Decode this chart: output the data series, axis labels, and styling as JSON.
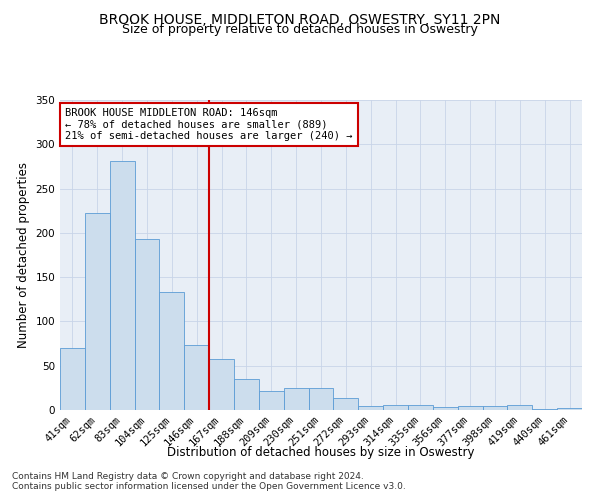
{
  "title": "BROOK HOUSE, MIDDLETON ROAD, OSWESTRY, SY11 2PN",
  "subtitle": "Size of property relative to detached houses in Oswestry",
  "xlabel": "Distribution of detached houses by size in Oswestry",
  "ylabel": "Number of detached properties",
  "categories": [
    "41sqm",
    "62sqm",
    "83sqm",
    "104sqm",
    "125sqm",
    "146sqm",
    "167sqm",
    "188sqm",
    "209sqm",
    "230sqm",
    "251sqm",
    "272sqm",
    "293sqm",
    "314sqm",
    "335sqm",
    "356sqm",
    "377sqm",
    "398sqm",
    "419sqm",
    "440sqm",
    "461sqm"
  ],
  "values": [
    70,
    222,
    281,
    193,
    133,
    73,
    58,
    35,
    21,
    25,
    25,
    14,
    5,
    6,
    6,
    3,
    4,
    5,
    6,
    1,
    2
  ],
  "bar_color": "#ccdded",
  "bar_edge_color": "#5b9bd5",
  "vline_index": 5,
  "vline_color": "#cc0000",
  "annotation_text": "BROOK HOUSE MIDDLETON ROAD: 146sqm\n← 78% of detached houses are smaller (889)\n21% of semi-detached houses are larger (240) →",
  "annotation_box_color": "#ffffff",
  "annotation_box_edge_color": "#cc0000",
  "footer_line1": "Contains HM Land Registry data © Crown copyright and database right 2024.",
  "footer_line2": "Contains public sector information licensed under the Open Government Licence v3.0.",
  "ylim": [
    0,
    350
  ],
  "yticks": [
    0,
    50,
    100,
    150,
    200,
    250,
    300,
    350
  ],
  "title_fontsize": 10,
  "subtitle_fontsize": 9,
  "axis_label_fontsize": 8.5,
  "tick_fontsize": 7.5,
  "annotation_fontsize": 7.5,
  "footer_fontsize": 6.5,
  "background_color": "#ffffff",
  "plot_bg_color": "#e8eef6",
  "grid_color": "#c8d4e8"
}
